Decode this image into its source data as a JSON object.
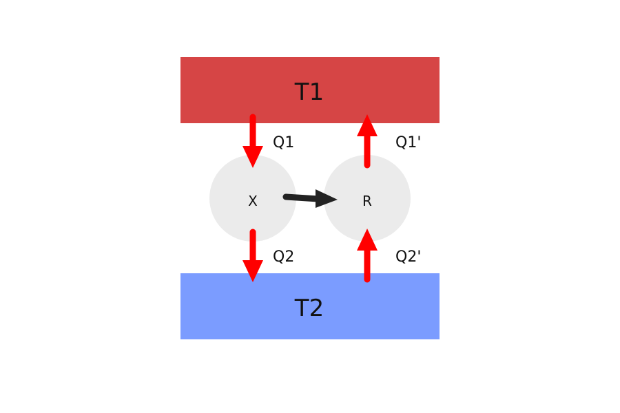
{
  "reservoirs": {
    "hot": {
      "label": "T1",
      "color": "#D64545"
    },
    "cold": {
      "label": "T2",
      "color": "#7B9CFF"
    }
  },
  "nodes": {
    "engine": {
      "label": "X",
      "color": "#EBEBEB"
    },
    "refrigerator": {
      "label": "R",
      "color": "#EBEBEB"
    }
  },
  "flows": {
    "q1": {
      "label": "Q1",
      "color": "#FF0000"
    },
    "q2": {
      "label": "Q2",
      "color": "#FF0000"
    },
    "q1_prime": {
      "label": "Q1'",
      "color": "#FF0000"
    },
    "q2_prime": {
      "label": "Q2'",
      "color": "#FF0000"
    },
    "work": {
      "color": "#222222"
    }
  }
}
